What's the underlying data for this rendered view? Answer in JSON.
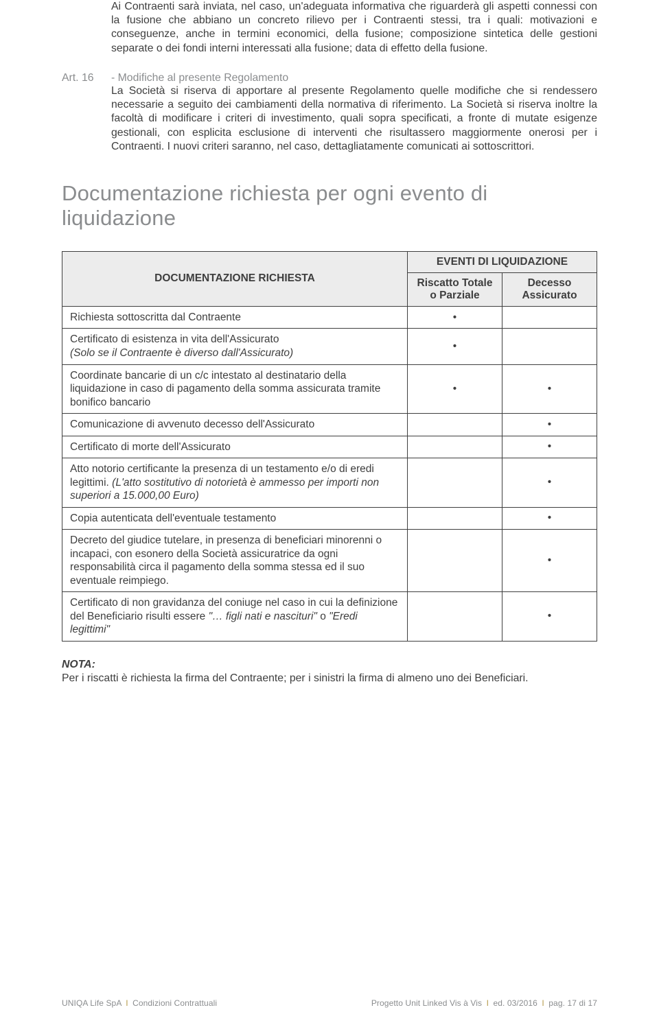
{
  "intro_para": "Ai Contraenti sarà inviata, nel caso, un'adeguata informativa che riguarderà gli aspetti connessi con la fusione che abbiano un concreto rilievo per i Contraenti stessi, tra i quali: motivazioni e conseguenze, anche in termini economici, della fusione; composizione sintetica delle gestioni separate o dei fondi interni interessati alla fusione; data di effetto della fusione.",
  "art16": {
    "label": "Art. 16",
    "title": "- Modifiche al presente Regolamento",
    "body": "La Società si riserva di apportare al presente Regolamento quelle modifiche che si rendessero necessarie a seguito dei cambiamenti della normativa di riferimento. La Società si riserva inoltre la facoltà di modificare i criteri di investimento, quali sopra specificati, a fronte di mutate esigenze gestionali, con esplicita esclusione di interventi che risultassero maggiormente onerosi per i Contraenti. I nuovi criteri saranno, nel caso, dettagliatamente comunicati ai sottoscrittori."
  },
  "section_title": "Documentazione richiesta per ogni evento di liquidazione",
  "table": {
    "head_left": "DOCUMENTAZIONE RICHIESTA",
    "head_super": "EVENTI DI LIQUIDAZIONE",
    "head_col1_l1": "Riscatto Totale",
    "head_col1_l2": "o Parziale",
    "head_col2_l1": "Decesso",
    "head_col2_l2": "Assicurato",
    "rows": [
      {
        "desc": "Richiesta sottoscritta dal Contraente",
        "c1": "•",
        "c2": ""
      },
      {
        "desc_html": "Certificato di esistenza in vita dell'Assicurato<br><span class=\"italic\">(Solo se il Contraente è diverso dall'Assicurato)</span>",
        "c1": "•",
        "c2": ""
      },
      {
        "desc": "Coordinate bancarie di un c/c intestato al destinatario della liquidazione in caso di pagamento della somma assicurata tramite bonifico bancario",
        "c1": "•",
        "c2": "•"
      },
      {
        "desc": "Comunicazione di avvenuto decesso dell'Assicurato",
        "c1": "",
        "c2": "•"
      },
      {
        "desc": "Certificato di morte dell'Assicurato",
        "c1": "",
        "c2": "•"
      },
      {
        "desc_html": "Atto notorio certificante la presenza di un testamento e/o di eredi legittimi. <span class=\"italic\">(L'atto sostitutivo di notorietà è ammesso per importi non superiori a 15.000,00 Euro)</span>",
        "c1": "",
        "c2": "•"
      },
      {
        "desc": "Copia autenticata dell'eventuale testamento",
        "c1": "",
        "c2": "•"
      },
      {
        "desc": "Decreto del giudice tutelare, in presenza di beneficiari minorenni o incapaci, con esonero della Società assicuratrice da ogni responsabilità circa il pagamento della somma stessa ed il suo eventuale reimpiego.",
        "c1": "",
        "c2": "•"
      },
      {
        "desc_html": "Certificato di non gravidanza del coniuge nel caso in cui la definizione del Beneficiario risulti essere <span class=\"italic\">\"… figli nati e nascituri\"</span> o <span class=\"italic\">\"Eredi legittimi\"</span>",
        "c1": "",
        "c2": "•"
      }
    ]
  },
  "nota": {
    "label": "NOTA:",
    "text": "Per i riscatti è richiesta la firma del Contraente; per i sinistri la firma di almeno uno dei Beneficiari."
  },
  "footer": {
    "left_company": "UNIQA Life SpA",
    "left_doc": "Condizioni Contrattuali",
    "right_project": "Progetto Unit Linked Vis à Vis",
    "right_ed": "ed. 03/2016",
    "right_pag_label": "pag.",
    "right_pag": "17 di 17"
  },
  "colors": {
    "text": "#3e3e3e",
    "muted": "#8a8c8e",
    "tbl_bg": "#ececec",
    "sep_gold": "#b59a4a"
  }
}
